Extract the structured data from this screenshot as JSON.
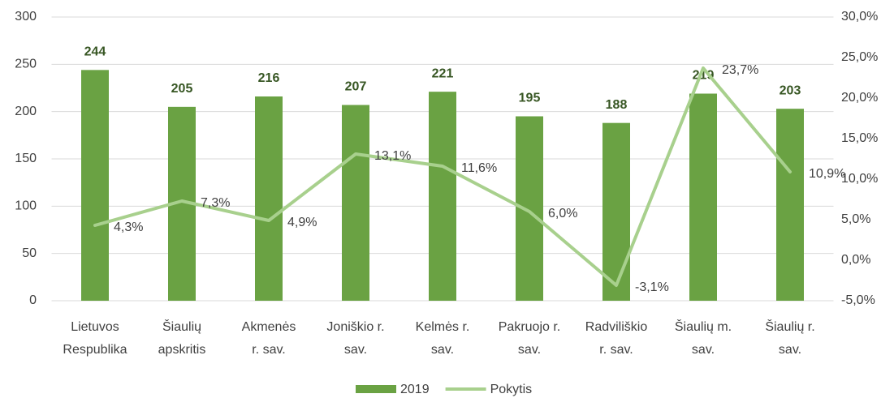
{
  "chart_data": {
    "type": "bar-line",
    "categories": [
      [
        "Lietuvos",
        "Respublika"
      ],
      [
        "Šiaulių",
        "apskritis"
      ],
      [
        "Akmenės",
        "r. sav."
      ],
      [
        "Joniškio r.",
        "sav."
      ],
      [
        "Kelmės r.",
        "sav."
      ],
      [
        "Pakruojo r.",
        "sav."
      ],
      [
        "Radviliškio",
        "r. sav."
      ],
      [
        "Šiaulių m.",
        "sav."
      ],
      [
        "Šiaulių r.",
        "sav."
      ]
    ],
    "series": [
      {
        "name": "2019",
        "type": "bar",
        "color": "#6aa243",
        "label_color": "#375623",
        "values": [
          244,
          205,
          216,
          207,
          221,
          195,
          188,
          219,
          203
        ]
      },
      {
        "name": "Pokytis",
        "type": "line",
        "axis": "y2",
        "color": "#a8d08d",
        "values": [
          4.3,
          7.3,
          4.9,
          13.1,
          11.6,
          6.0,
          -3.1,
          23.7,
          10.9
        ],
        "value_labels": [
          "4,3%",
          "7,3%",
          "4,9%",
          "13,1%",
          "11,6%",
          "6,0%",
          "-3,1%",
          "23,7%",
          "10,9%"
        ]
      }
    ],
    "ylim": [
      0,
      300
    ],
    "yticks": [
      0,
      50,
      100,
      150,
      200,
      250,
      300
    ],
    "y2lim": [
      -5,
      30
    ],
    "y2ticks": [
      {
        "value": -5,
        "label": "-5,0%"
      },
      {
        "value": 0,
        "label": "0,0%"
      },
      {
        "value": 5,
        "label": "5,0%"
      },
      {
        "value": 10,
        "label": "10,0%"
      },
      {
        "value": 15,
        "label": "15,0%"
      },
      {
        "value": 20,
        "label": "20,0%"
      },
      {
        "value": 25,
        "label": "25,0%"
      },
      {
        "value": 30,
        "label": "30,0%"
      }
    ],
    "grid": true,
    "legend": "bottom"
  }
}
